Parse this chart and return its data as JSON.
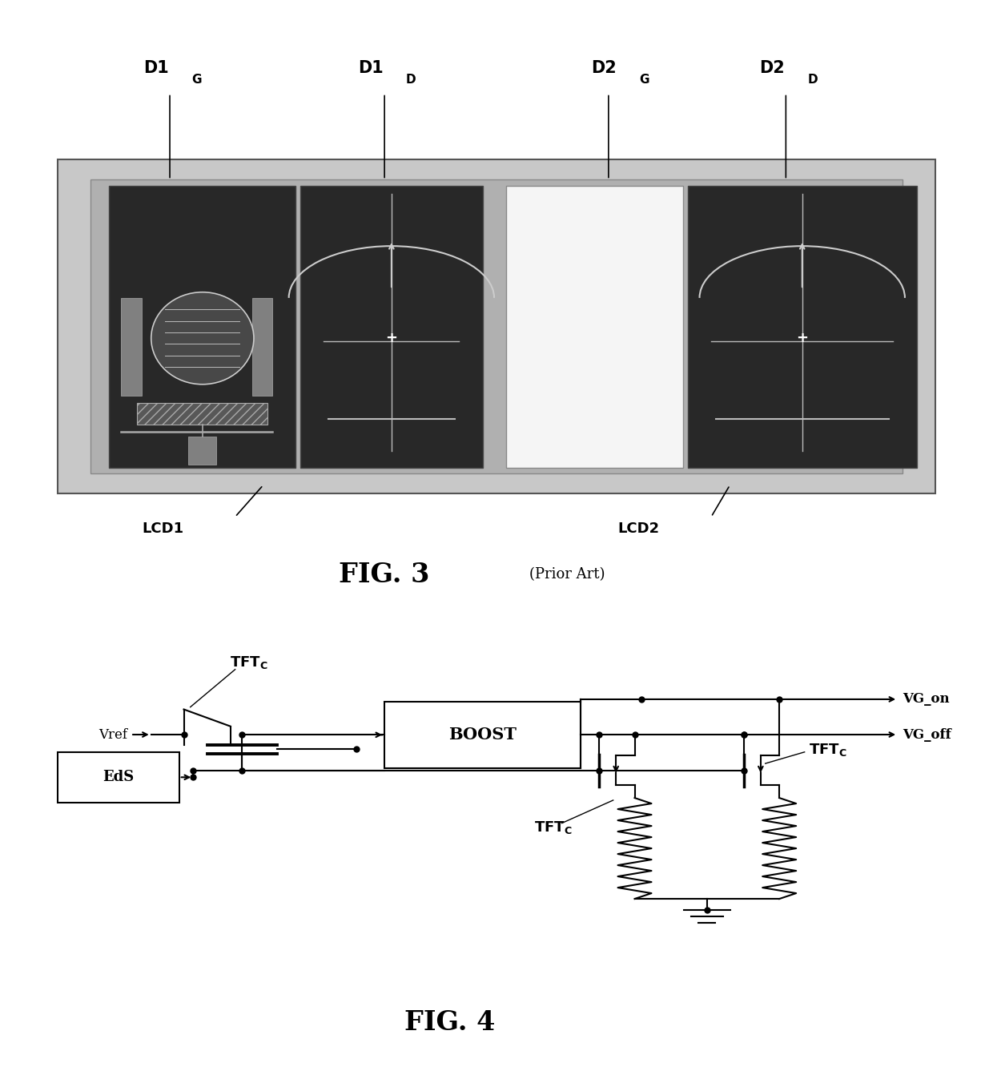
{
  "fig3": {
    "title": "FIG. 3",
    "subtitle": "(Prior Art)",
    "lcd1_label": "LCD1",
    "lcd2_label": "LCD2",
    "bg_outer": "#c8c8c8",
    "bg_inner": "#b0b0b0",
    "cell_dark": "#282828",
    "cell_white": "#f5f5f5"
  },
  "fig4": {
    "title": "FIG. 4",
    "vref_label": "Vref",
    "eds_label": "EdS",
    "boost_label": "BOOST",
    "tftc_label": "TFT",
    "tftc_sub": "C",
    "vgon_label": "VG_on",
    "vgoff_label": "VG_off"
  },
  "bg_color": "#ffffff"
}
